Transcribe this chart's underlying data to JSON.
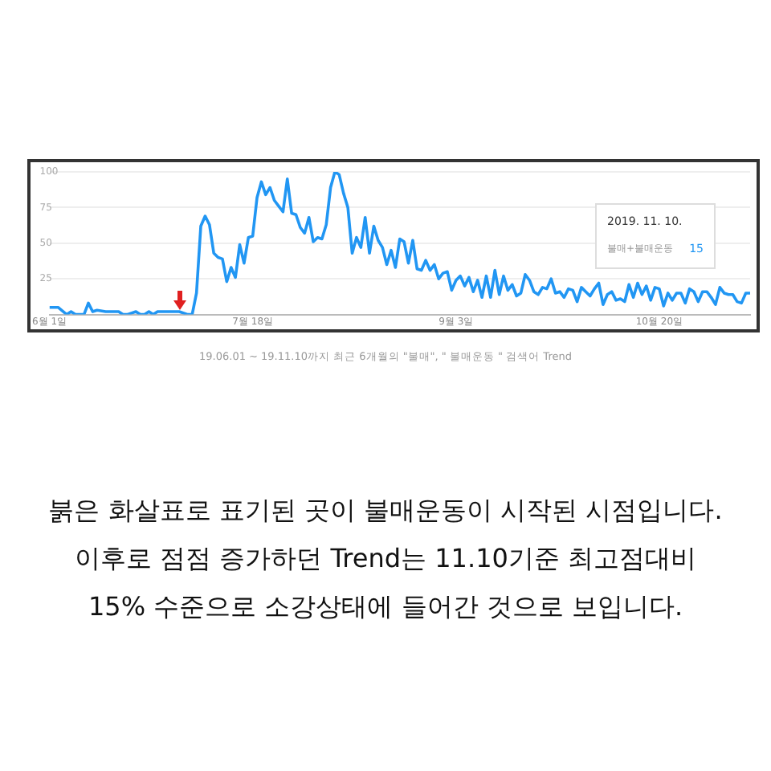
{
  "chart_data": {
    "type": "line",
    "x": [
      "2019-06-01",
      "2019-06-03",
      "2019-06-05",
      "2019-06-06",
      "2019-06-07",
      "2019-06-09",
      "2019-06-10",
      "2019-06-11",
      "2019-06-12",
      "2019-06-14",
      "2019-06-17",
      "2019-06-18",
      "2019-06-19",
      "2019-06-21",
      "2019-06-22",
      "2019-06-23",
      "2019-06-24",
      "2019-06-25",
      "2019-06-26",
      "2019-06-28",
      "2019-07-01",
      "2019-07-03",
      "2019-07-04",
      "2019-07-05",
      "2019-07-06",
      "2019-07-07",
      "2019-07-08",
      "2019-07-09",
      "2019-07-10",
      "2019-07-11",
      "2019-07-12",
      "2019-07-13",
      "2019-07-14",
      "2019-07-15",
      "2019-07-16",
      "2019-07-17",
      "2019-07-18",
      "2019-07-19",
      "2019-07-20",
      "2019-07-21",
      "2019-07-22",
      "2019-07-23",
      "2019-07-24",
      "2019-07-25",
      "2019-07-26",
      "2019-07-27",
      "2019-07-28",
      "2019-07-29",
      "2019-07-30",
      "2019-07-31",
      "2019-08-01",
      "2019-08-02",
      "2019-08-03",
      "2019-08-04",
      "2019-08-05",
      "2019-08-06",
      "2019-08-07",
      "2019-08-08",
      "2019-08-09",
      "2019-08-10",
      "2019-08-11",
      "2019-08-12",
      "2019-08-13",
      "2019-08-14",
      "2019-08-15",
      "2019-08-16",
      "2019-08-17",
      "2019-08-18",
      "2019-08-19",
      "2019-08-20",
      "2019-08-21",
      "2019-08-22",
      "2019-08-23",
      "2019-08-24",
      "2019-08-25",
      "2019-08-26",
      "2019-08-27",
      "2019-08-28",
      "2019-08-29",
      "2019-08-30",
      "2019-08-31",
      "2019-09-01",
      "2019-09-02",
      "2019-09-03",
      "2019-09-04",
      "2019-09-05",
      "2019-09-06",
      "2019-09-07",
      "2019-09-08",
      "2019-09-09",
      "2019-09-10",
      "2019-09-11",
      "2019-09-12",
      "2019-09-13",
      "2019-09-14",
      "2019-09-15",
      "2019-09-16",
      "2019-09-17",
      "2019-09-18",
      "2019-09-19",
      "2019-09-20",
      "2019-09-21",
      "2019-09-22",
      "2019-09-23",
      "2019-09-24",
      "2019-09-25",
      "2019-09-26",
      "2019-09-27",
      "2019-09-28",
      "2019-09-29",
      "2019-09-30",
      "2019-10-01",
      "2019-10-02",
      "2019-10-03",
      "2019-10-04",
      "2019-10-05",
      "2019-10-06",
      "2019-10-07",
      "2019-10-08",
      "2019-10-09",
      "2019-10-10",
      "2019-10-11",
      "2019-10-12",
      "2019-10-13",
      "2019-10-14",
      "2019-10-15",
      "2019-10-16",
      "2019-10-17",
      "2019-10-18",
      "2019-10-19",
      "2019-10-20",
      "2019-10-21",
      "2019-10-22",
      "2019-10-23",
      "2019-10-24",
      "2019-10-25",
      "2019-10-26",
      "2019-10-27",
      "2019-10-28",
      "2019-10-29",
      "2019-10-30",
      "2019-10-31",
      "2019-11-01",
      "2019-11-02",
      "2019-11-03",
      "2019-11-04",
      "2019-11-05",
      "2019-11-06",
      "2019-11-07",
      "2019-11-08",
      "2019-11-09",
      "2019-11-10"
    ],
    "series": [
      {
        "name": "불매+불매운동",
        "color": "#2196f3",
        "values": [
          5,
          5,
          0,
          2,
          0,
          0,
          8,
          2,
          3,
          2,
          2,
          0,
          0,
          2,
          0,
          0,
          2,
          0,
          2,
          2,
          2,
          0,
          0,
          15,
          62,
          69,
          63,
          43,
          40,
          39,
          23,
          33,
          26,
          49,
          36,
          54,
          55,
          82,
          93,
          84,
          89,
          80,
          76,
          72,
          95,
          71,
          70,
          61,
          57,
          68,
          51,
          54,
          53,
          63,
          89,
          100,
          98,
          85,
          75,
          43,
          54,
          47,
          68,
          43,
          62,
          52,
          47,
          35,
          45,
          33,
          53,
          51,
          36,
          52,
          32,
          31,
          38,
          31,
          35,
          25,
          29,
          30,
          17,
          24,
          27,
          20,
          26,
          16,
          24,
          12,
          27,
          12,
          31,
          14,
          27,
          17,
          21,
          13,
          15,
          28,
          24,
          16,
          14,
          19,
          18,
          25,
          15,
          16,
          12,
          18,
          17,
          9,
          19,
          16,
          13,
          18,
          22,
          7,
          14,
          16,
          10,
          11,
          9,
          21,
          12,
          22,
          14,
          20,
          10,
          19,
          18,
          6,
          15,
          10,
          15,
          15,
          8,
          18,
          16,
          9,
          16,
          16,
          12,
          7,
          19,
          15,
          14,
          14,
          9,
          8,
          15,
          15
        ]
      }
    ],
    "xlim": [
      "2019-06-01",
      "2019-11-10"
    ],
    "xticks": [
      {
        "value": "2019-06-01",
        "label": "6월 1일"
      },
      {
        "value": "2019-07-18",
        "label": "7월 18일"
      },
      {
        "value": "2019-09-03",
        "label": "9월 3일"
      },
      {
        "value": "2019-10-20",
        "label": "10월 20일"
      }
    ],
    "ylim": [
      0,
      100
    ],
    "yticks": [
      25,
      50,
      75,
      100
    ],
    "grid": "y",
    "marker": "none",
    "line_style": "solid",
    "annotations": [
      "2019. 11. 10.",
      "15",
      "19.06.01 ~ 19.11.10까지 최근 6개월의 \"불매\", \" 불매운동 \" 검색어 Trend",
      "붉은 화살표로 표기된 곳이 불매운동이 시작된 시점입니다.",
      "이후로 점점 증가하던 Trend는 11.10기준 최고점대비",
      "15% 수준으로 소강상태에 들어간 것으로 보입니다."
    ]
  }
}
